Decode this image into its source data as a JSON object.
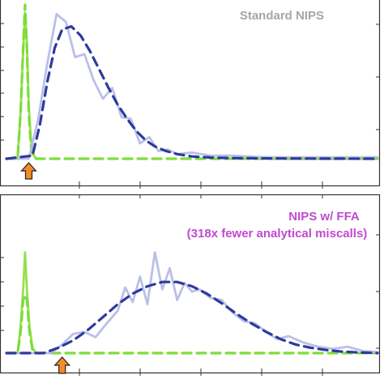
{
  "chart_data": [
    {
      "type": "line",
      "title": "Standard NIPS",
      "title_color": "#a6a6a6",
      "xlim": [
        0,
        10
      ],
      "ylim": [
        0,
        1
      ],
      "series": [
        {
          "color": "#8cdc3c",
          "style": "solid",
          "x": [
            0,
            0.3,
            0.38,
            0.45,
            0.5,
            0.55,
            0.6,
            0.66,
            0.72,
            0.8,
            0.9,
            1.0
          ],
          "y": [
            0,
            0,
            0.3,
            0.7,
            0.95,
            0.75,
            0.35,
            0.12,
            0.03,
            0,
            0,
            0
          ]
        },
        {
          "color": "#7ddd3a",
          "style": "dashed",
          "x": [
            0,
            0.3,
            0.38,
            0.45,
            0.5,
            0.55,
            0.6,
            0.66,
            0.72,
            0.8,
            10
          ],
          "y": [
            0,
            0,
            0.3,
            0.72,
            1.0,
            0.72,
            0.3,
            0.08,
            0.01,
            0,
            0
          ]
        },
        {
          "color": "#b3b8e6",
          "style": "solid",
          "x": [
            0,
            0.6,
            0.85,
            1.1,
            1.35,
            1.6,
            1.85,
            2.1,
            2.35,
            2.6,
            2.85,
            3.1,
            3.35,
            3.6,
            3.85,
            4.1,
            4.35,
            4.6,
            5.0,
            5.5,
            6,
            7,
            8,
            9,
            10
          ],
          "y": [
            0,
            0,
            0.25,
            0.62,
            0.94,
            0.89,
            0.66,
            0.68,
            0.51,
            0.39,
            0.46,
            0.27,
            0.26,
            0.1,
            0.14,
            0.05,
            0.06,
            0.03,
            0.04,
            0.02,
            0.02,
            0.01,
            0.01,
            0.01,
            0.01
          ]
        },
        {
          "color": "#2e3a9e",
          "style": "dashed",
          "x": [
            0,
            0.7,
            0.9,
            1.1,
            1.3,
            1.5,
            1.75,
            2.0,
            2.25,
            2.5,
            2.75,
            3.0,
            3.25,
            3.5,
            3.75,
            4.0,
            4.3,
            4.6,
            5.0,
            5.5,
            6,
            7,
            8,
            10
          ],
          "y": [
            0,
            0.02,
            0.22,
            0.5,
            0.72,
            0.84,
            0.86,
            0.8,
            0.7,
            0.58,
            0.46,
            0.35,
            0.26,
            0.18,
            0.12,
            0.08,
            0.05,
            0.03,
            0.015,
            0.008,
            0.004,
            0.002,
            0.001,
            0.0
          ]
        }
      ],
      "annotations": [
        {
          "type": "arrow",
          "x": 0.6,
          "color": "#f28c28"
        }
      ]
    },
    {
      "type": "line",
      "title": "NIPS w/ FFA",
      "subtitle": "(318x fewer analytical miscalls)",
      "title_color": "#c04ad0",
      "xlim": [
        0,
        10
      ],
      "ylim": [
        0,
        1
      ],
      "series": [
        {
          "color": "#8cdc3c",
          "style": "solid",
          "x": [
            0,
            0.3,
            0.38,
            0.45,
            0.5,
            0.55,
            0.62,
            0.7,
            0.8,
            1.0
          ],
          "y": [
            0,
            0,
            0.25,
            0.6,
            0.95,
            0.6,
            0.25,
            0.05,
            0,
            0
          ]
        },
        {
          "color": "#7ddd3a",
          "style": "dashed",
          "x": [
            0,
            0.3,
            0.38,
            0.45,
            0.5,
            0.55,
            0.62,
            0.7,
            0.8,
            10
          ],
          "y": [
            0,
            0,
            0.2,
            0.5,
            0.55,
            0.5,
            0.2,
            0.03,
            0,
            0
          ]
        },
        {
          "color": "#b3b8e6",
          "style": "solid",
          "x": [
            0,
            1.2,
            1.5,
            1.8,
            2.1,
            2.4,
            2.7,
            3.0,
            3.2,
            3.4,
            3.6,
            3.8,
            4.0,
            4.2,
            4.4,
            4.6,
            4.8,
            5.0,
            5.2,
            5.5,
            5.8,
            6.1,
            6.4,
            6.7,
            7.0,
            7.3,
            7.6,
            8.0,
            8.4,
            8.8,
            9.2,
            9.6,
            10
          ],
          "y": [
            0,
            0,
            0.08,
            0.18,
            0.2,
            0.15,
            0.28,
            0.4,
            0.62,
            0.48,
            0.72,
            0.46,
            0.95,
            0.6,
            0.8,
            0.5,
            0.66,
            0.58,
            0.6,
            0.52,
            0.5,
            0.38,
            0.3,
            0.28,
            0.2,
            0.13,
            0.16,
            0.1,
            0.06,
            0.04,
            0.06,
            0.02,
            0.01
          ]
        },
        {
          "color": "#2e3a9e",
          "style": "dashed",
          "x": [
            0,
            1.0,
            1.4,
            1.8,
            2.2,
            2.6,
            3.0,
            3.4,
            3.8,
            4.2,
            4.6,
            5.0,
            5.4,
            5.8,
            6.2,
            6.6,
            7.0,
            7.4,
            7.8,
            8.2,
            8.6,
            9.0,
            9.4,
            10
          ],
          "y": [
            0,
            0.0,
            0.05,
            0.12,
            0.22,
            0.34,
            0.46,
            0.56,
            0.63,
            0.67,
            0.67,
            0.63,
            0.56,
            0.47,
            0.37,
            0.28,
            0.2,
            0.13,
            0.08,
            0.05,
            0.03,
            0.015,
            0.008,
            0.0
          ]
        }
      ],
      "annotations": [
        {
          "type": "arrow",
          "x": 1.5,
          "color": "#f28c28"
        }
      ]
    }
  ]
}
